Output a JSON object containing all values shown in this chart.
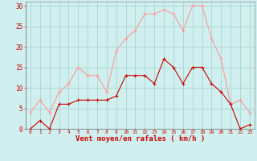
{
  "hours": [
    0,
    1,
    2,
    3,
    4,
    5,
    6,
    7,
    8,
    9,
    10,
    11,
    12,
    13,
    14,
    15,
    16,
    17,
    18,
    19,
    20,
    21,
    22,
    23
  ],
  "mean_wind": [
    0,
    2,
    0,
    6,
    6,
    7,
    7,
    7,
    7,
    8,
    13,
    13,
    13,
    11,
    17,
    15,
    11,
    15,
    15,
    11,
    9,
    6,
    0,
    1
  ],
  "gust_wind": [
    4,
    7,
    4,
    9,
    11,
    15,
    13,
    13,
    9,
    19,
    22,
    24,
    28,
    28,
    29,
    28,
    24,
    30,
    30,
    22,
    17,
    6,
    7,
    4
  ],
  "bg_color": "#cff0ee",
  "grid_color": "#aad4d0",
  "mean_color": "#cc0000",
  "gust_color": "#ff9999",
  "xlabel": "Vent moyen/en rafales ( km/h )",
  "xlabel_color": "#cc0000",
  "tick_color": "#cc0000",
  "ylim": [
    0,
    31
  ],
  "yticks": [
    0,
    5,
    10,
    15,
    20,
    25,
    30
  ],
  "marker_size": 2.2,
  "linewidth": 0.8
}
